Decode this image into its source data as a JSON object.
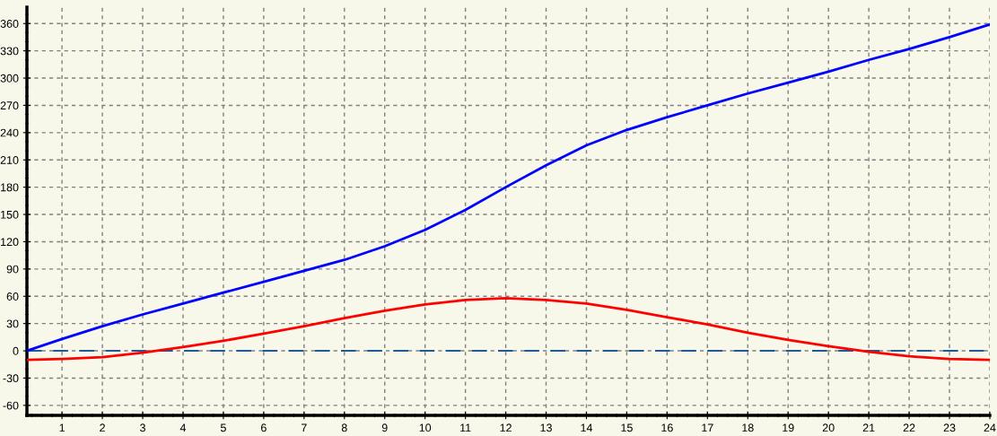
{
  "chart_data": {
    "type": "line",
    "x": [
      0.13,
      1,
      2,
      3,
      4,
      5,
      6,
      7,
      8,
      9,
      10,
      11,
      12,
      13,
      14,
      15,
      16,
      17,
      18,
      19,
      20,
      21,
      22,
      23,
      24
    ],
    "series": [
      {
        "color": "#0000ff",
        "values": [
          0,
          13,
          27,
          40,
          52,
          64,
          76,
          88,
          100,
          115,
          133,
          155,
          180,
          204,
          226,
          243,
          257,
          270,
          283,
          295,
          307,
          320,
          332,
          345,
          359
        ]
      },
      {
        "color": "#ff0000",
        "values": [
          -10,
          -9,
          -7,
          -2,
          4,
          11,
          19,
          27,
          36,
          44,
          51,
          56,
          58,
          56,
          52,
          45,
          37,
          29,
          20,
          12,
          5,
          -1,
          -6,
          -9,
          -10
        ]
      }
    ],
    "xlim": [
      0.13,
      24
    ],
    "xticks": [
      1,
      2,
      3,
      4,
      5,
      6,
      7,
      8,
      9,
      10,
      11,
      12,
      13,
      14,
      15,
      16,
      17,
      18,
      19,
      20,
      21,
      22,
      23,
      24
    ],
    "ylim": [
      -71,
      378
    ],
    "yticks": [
      -60,
      -30,
      0,
      30,
      60,
      90,
      120,
      150,
      180,
      210,
      240,
      270,
      300,
      330,
      360
    ],
    "ref_lines": [
      {
        "axis": "y",
        "value": 0,
        "color": "#1f5a96",
        "line_style": "dashed"
      }
    ],
    "grid": true,
    "marker": "none",
    "line_style": "solid"
  }
}
